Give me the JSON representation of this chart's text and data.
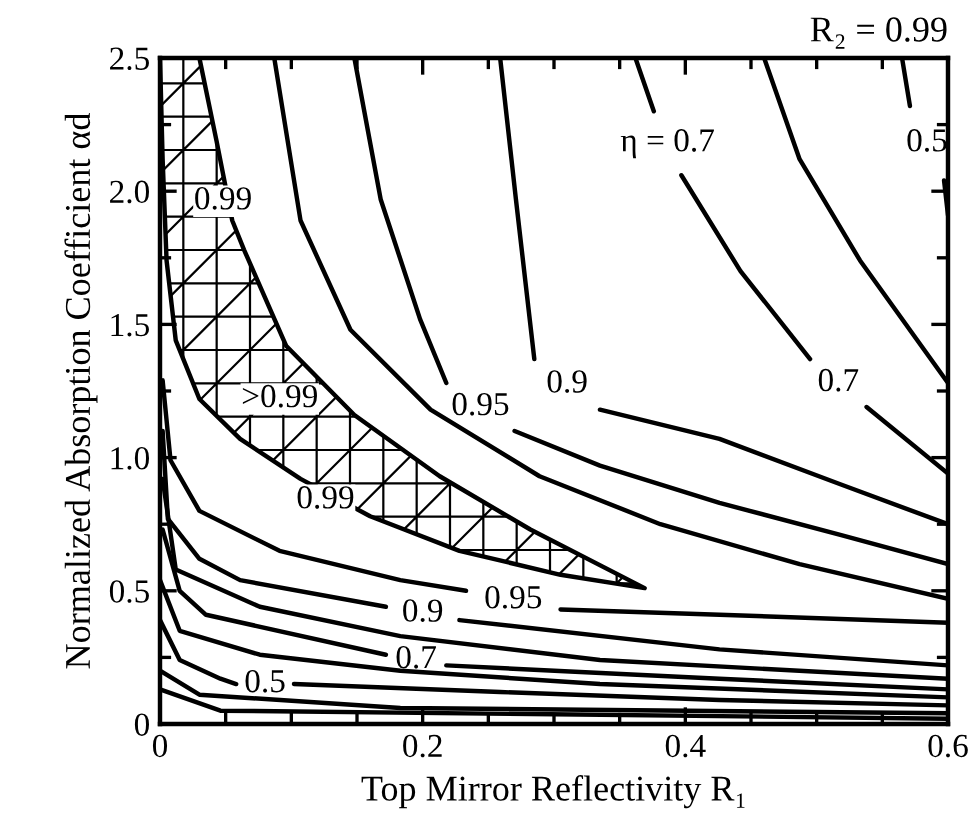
{
  "chart_data": {
    "type": "line",
    "title": "R₂ = 0.99",
    "xlabel": "Top Mirror Reflectivity R₁",
    "ylabel": "Normalized Absorption Coefficient αd",
    "xlim": [
      0,
      0.6
    ],
    "xticks": [
      0,
      0.2,
      0.4,
      0.6
    ],
    "ylim": [
      0,
      2.5
    ],
    "yticks": [
      0,
      0.5,
      {
        "value": 1,
        "label": "1.0"
      },
      1.5,
      {
        "value": 2,
        "label": "2.0"
      },
      2.5
    ],
    "grid": false,
    "marker": "none",
    "line_style": "solid",
    "series": [
      {
        "color": "#000000",
        "x": [
          0.565,
          0.571,
          0.584,
          0.597,
          0.6
        ],
        "values": [
          2.5,
          2.32,
          null,
          2.04,
          1.91
        ]
      },
      {
        "color": "#000000",
        "x": [
          0.46,
          0.487,
          0.533,
          0.6
        ],
        "values": [
          2.5,
          2.12,
          1.74,
          1.28
        ]
      },
      {
        "color": "#000000",
        "x": [
          0.362,
          0.376,
          0.386,
          0.397,
          0.442,
          0.495,
          0.516,
          0.538,
          0.6
        ],
        "values": [
          2.5,
          2.3,
          null,
          2.06,
          1.7,
          1.37,
          null,
          1.19,
          0.94
        ]
      },
      {
        "color": "#000000",
        "x": [
          0.259,
          0.271,
          0.285,
          0.31,
          0.335,
          0.426,
          0.518,
          0.6
        ],
        "values": [
          2.5,
          1.97,
          1.37,
          null,
          1.18,
          1.07,
          0.9,
          0.75
        ]
      },
      {
        "color": "#000000",
        "x": [
          0.148,
          0.168,
          0.198,
          0.218,
          0.245,
          0.27,
          0.335,
          0.426,
          0.518,
          0.6
        ],
        "values": [
          2.5,
          1.97,
          1.52,
          1.28,
          null,
          1.1,
          0.97,
          0.83,
          0.71,
          0.6
        ]
      },
      {
        "color": "#000000",
        "x": [
          0.087,
          0.107,
          0.145,
          0.206,
          0.289,
          0.381,
          0.487,
          0.6
        ],
        "values": [
          2.5,
          1.89,
          1.48,
          1.18,
          0.93,
          0.75,
          0.6,
          0.47
        ]
      },
      {
        "type": "area",
        "color": "#000000",
        "x": [
          0.03,
          0.043,
          0.055,
          0.064,
          0.096,
          0.148,
          0.213,
          0.282,
          0.369,
          0.305,
          0.228,
          0.16,
          0.107,
          0.061,
          0.03,
          0.012,
          0.005,
          0.002,
          0
        ],
        "values": [
          2.5,
          2.19,
          1.89,
          1.78,
          1.42,
          1.16,
          0.93,
          0.73,
          0.51,
          0.56,
          0.65,
          0.78,
          0.92,
          1.07,
          1.22,
          1.44,
          1.74,
          2.12,
          2.5
        ]
      },
      {
        "color": "#000000",
        "x": [
          0.002,
          0.008,
          0.03,
          0.091,
          0.183,
          0.233,
          0.257,
          0.305,
          0.426,
          0.6
        ],
        "values": [
          1.29,
          0.99,
          0.8,
          0.65,
          0.54,
          0.5,
          null,
          0.43,
          0.41,
          0.38
        ]
      },
      {
        "color": "#000000",
        "x": [
          0.002,
          0.006,
          0.03,
          0.061,
          0.172,
          0.2,
          0.228,
          0.426,
          0.6
        ],
        "values": [
          1.1,
          0.77,
          0.62,
          0.54,
          0.44,
          null,
          0.39,
          0.28,
          0.22
        ]
      },
      {
        "color": "#000000",
        "x": [
          0.002,
          0.012,
          0.076,
          0.183,
          0.335,
          0.6
        ],
        "values": [
          0.92,
          0.58,
          0.44,
          0.33,
          0.24,
          0.17
        ]
      },
      {
        "color": "#000000",
        "x": [
          0.002,
          0.015,
          0.035,
          0.172,
          0.195,
          0.218,
          0.426,
          0.6
        ],
        "values": [
          0.73,
          0.5,
          0.41,
          0.26,
          null,
          0.22,
          0.17,
          0.13
        ]
      },
      {
        "color": "#000000",
        "x": [
          0,
          0.015,
          0.076,
          0.183,
          0.335,
          0.6
        ],
        "values": [
          0.54,
          0.35,
          0.26,
          0.2,
          0.15,
          0.1
        ]
      },
      {
        "color": "#000000",
        "x": [
          0,
          0.015,
          0.046,
          0.058,
          0.08,
          0.102,
          0.259,
          0.426,
          0.6
        ],
        "values": [
          0.39,
          0.24,
          0.17,
          0.15,
          null,
          0.15,
          0.12,
          0.09,
          0.07
        ]
      },
      {
        "color": "#000000",
        "x": [
          0,
          0.03,
          0.183,
          0.6
        ],
        "values": [
          0.2,
          0.11,
          0.06,
          0.04
        ]
      },
      {
        "color": "#000000",
        "x": [
          0,
          0.046,
          0.6
        ],
        "values": [
          0.13,
          0.05,
          0.02
        ]
      }
    ],
    "annotations": [
      {
        "text": "η = 0.7",
        "x": 0.376,
        "y": 2.3
      },
      {
        "text": "0.5",
        "x": 0.571,
        "y": 2.32
      },
      {
        "text": "0.7",
        "x": 0.495,
        "y": 1.37
      },
      {
        "text": "0.9",
        "x": 0.285,
        "y": 1.37
      },
      {
        "text": "0.95",
        "x": 0.218,
        "y": 1.28
      },
      {
        "text": "0.95",
        "x": 0.233,
        "y": 0.5
      },
      {
        "text": "0.9",
        "x": 0.172,
        "y": 0.44
      },
      {
        "text": "0.7",
        "x": 0.172,
        "y": 0.26
      },
      {
        "text": "0.5",
        "x": 0.058,
        "y": 0.15
      },
      "0.99",
      ">0.99",
      "0.99"
    ]
  }
}
